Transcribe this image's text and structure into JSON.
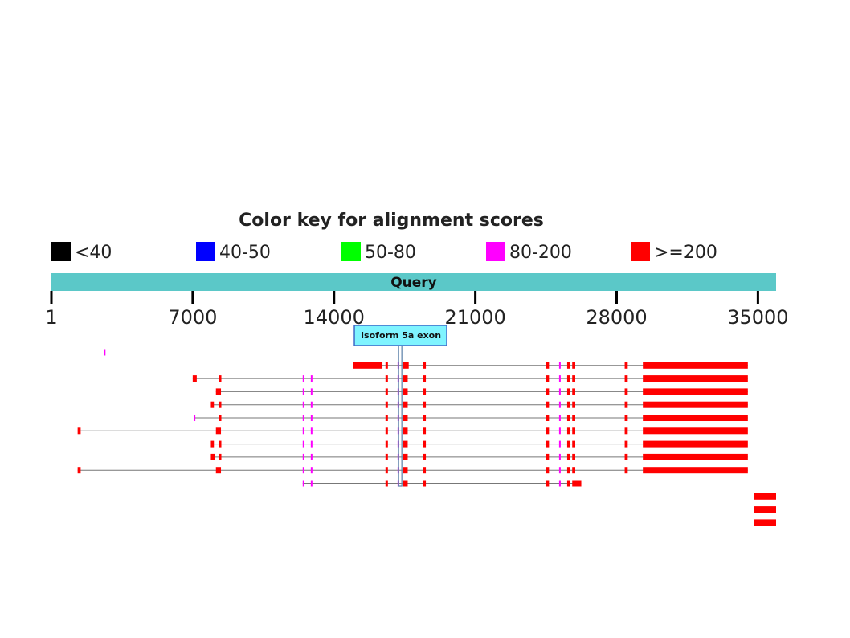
{
  "chart_data": {
    "type": "alignment",
    "title": "Color key for alignment scores",
    "legend": [
      {
        "label": "<40",
        "color": "#000000"
      },
      {
        "label": "40-50",
        "color": "#0000ff"
      },
      {
        "label": "50-80",
        "color": "#00ff00"
      },
      {
        "label": "80-200",
        "color": "#ff00ff"
      },
      {
        "label": ">=200",
        "color": "#ff0000"
      }
    ],
    "query": {
      "label": "Query",
      "start": 1,
      "end": 35900,
      "color": "#5bc8c8"
    },
    "x_ticks": [
      {
        "value": 1,
        "label": "1"
      },
      {
        "value": 7000,
        "label": "7000"
      },
      {
        "value": 14000,
        "label": "14000"
      },
      {
        "value": 21000,
        "label": "21000"
      },
      {
        "value": 28000,
        "label": "28000"
      },
      {
        "value": 35000,
        "label": "35000"
      }
    ],
    "annotation": {
      "label": "Isoform 5a exon",
      "start": 17200,
      "end": 17350
    },
    "hits": [
      {
        "segments": [
          [
            2600,
            2700,
            "m"
          ]
        ]
      },
      {
        "segments": [
          [
            14950,
            15250,
            "r"
          ],
          [
            16550,
            16650,
            "r"
          ],
          [
            17150,
            17250,
            "m"
          ],
          [
            17400,
            17700,
            "r"
          ],
          [
            18400,
            18550,
            "r"
          ],
          [
            24500,
            24650,
            "r"
          ],
          [
            25150,
            25300,
            "m"
          ],
          [
            25550,
            25700,
            "r"
          ],
          [
            25800,
            25950,
            "r"
          ],
          [
            28400,
            28550,
            "r"
          ],
          [
            29300,
            34500,
            "r"
          ]
        ],
        "long_first": 1450
      },
      {
        "segments": [
          [
            7000,
            7200,
            "r"
          ],
          [
            8300,
            8400,
            "r"
          ],
          [
            12450,
            12500,
            "m"
          ],
          [
            12850,
            12950,
            "m"
          ],
          [
            16550,
            16650,
            "r"
          ],
          [
            17150,
            17250,
            "m"
          ],
          [
            17400,
            17650,
            "r"
          ],
          [
            18400,
            18550,
            "r"
          ],
          [
            24500,
            24650,
            "r"
          ],
          [
            25150,
            25300,
            "m"
          ],
          [
            25550,
            25700,
            "r"
          ],
          [
            25800,
            25950,
            "r"
          ],
          [
            28400,
            28550,
            "r"
          ],
          [
            29300,
            34500,
            "r"
          ]
        ]
      },
      {
        "segments": [
          [
            8150,
            8400,
            "r"
          ],
          [
            12450,
            12500,
            "m"
          ],
          [
            12850,
            12950,
            "m"
          ],
          [
            16550,
            16650,
            "r"
          ],
          [
            17150,
            17250,
            "m"
          ],
          [
            17400,
            17650,
            "r"
          ],
          [
            18400,
            18550,
            "r"
          ],
          [
            24500,
            24650,
            "r"
          ],
          [
            25150,
            25300,
            "m"
          ],
          [
            25550,
            25700,
            "r"
          ],
          [
            25800,
            25950,
            "r"
          ],
          [
            28400,
            28550,
            "r"
          ],
          [
            29300,
            34500,
            "r"
          ]
        ]
      },
      {
        "segments": [
          [
            7900,
            8050,
            "r"
          ],
          [
            8300,
            8400,
            "r"
          ],
          [
            12450,
            12500,
            "m"
          ],
          [
            12850,
            12950,
            "m"
          ],
          [
            16550,
            16650,
            "r"
          ],
          [
            17150,
            17250,
            "m"
          ],
          [
            17400,
            17650,
            "r"
          ],
          [
            18400,
            18550,
            "r"
          ],
          [
            24500,
            24650,
            "r"
          ],
          [
            25150,
            25300,
            "m"
          ],
          [
            25550,
            25700,
            "r"
          ],
          [
            25800,
            25950,
            "r"
          ],
          [
            28400,
            28550,
            "r"
          ],
          [
            29300,
            34500,
            "r"
          ]
        ]
      },
      {
        "segments": [
          [
            7050,
            7100,
            "m"
          ],
          [
            8300,
            8400,
            "r"
          ],
          [
            12450,
            12500,
            "m"
          ],
          [
            12850,
            12950,
            "m"
          ],
          [
            16550,
            16650,
            "r"
          ],
          [
            17150,
            17250,
            "m"
          ],
          [
            17400,
            17650,
            "r"
          ],
          [
            18400,
            18550,
            "r"
          ],
          [
            24500,
            24650,
            "r"
          ],
          [
            25150,
            25300,
            "m"
          ],
          [
            25550,
            25700,
            "r"
          ],
          [
            25800,
            25950,
            "r"
          ],
          [
            28400,
            28550,
            "r"
          ],
          [
            29300,
            34500,
            "r"
          ]
        ]
      },
      {
        "segments": [
          [
            1300,
            1450,
            "r"
          ],
          [
            8150,
            8400,
            "r"
          ],
          [
            12450,
            12500,
            "m"
          ],
          [
            12850,
            12950,
            "m"
          ],
          [
            16550,
            16650,
            "r"
          ],
          [
            17150,
            17250,
            "m"
          ],
          [
            17400,
            17650,
            "r"
          ],
          [
            18400,
            18550,
            "r"
          ],
          [
            24500,
            24650,
            "r"
          ],
          [
            25150,
            25300,
            "m"
          ],
          [
            25550,
            25700,
            "r"
          ],
          [
            25800,
            25950,
            "r"
          ],
          [
            28400,
            28550,
            "r"
          ],
          [
            29300,
            34500,
            "r"
          ]
        ]
      },
      {
        "segments": [
          [
            7900,
            8050,
            "r"
          ],
          [
            8300,
            8400,
            "r"
          ],
          [
            12450,
            12500,
            "m"
          ],
          [
            12850,
            12950,
            "m"
          ],
          [
            16550,
            16650,
            "r"
          ],
          [
            17150,
            17250,
            "m"
          ],
          [
            17400,
            17650,
            "r"
          ],
          [
            18400,
            18550,
            "r"
          ],
          [
            24500,
            24650,
            "r"
          ],
          [
            25150,
            25300,
            "m"
          ],
          [
            25550,
            25700,
            "r"
          ],
          [
            25800,
            25950,
            "r"
          ],
          [
            28400,
            28550,
            "r"
          ],
          [
            29300,
            34500,
            "r"
          ]
        ]
      },
      {
        "segments": [
          [
            7900,
            8100,
            "r"
          ],
          [
            8300,
            8400,
            "r"
          ],
          [
            12450,
            12500,
            "m"
          ],
          [
            12850,
            12950,
            "m"
          ],
          [
            16550,
            16650,
            "r"
          ],
          [
            17150,
            17250,
            "m"
          ],
          [
            17400,
            17650,
            "r"
          ],
          [
            18400,
            18550,
            "r"
          ],
          [
            24500,
            24650,
            "r"
          ],
          [
            25150,
            25300,
            "m"
          ],
          [
            25550,
            25700,
            "r"
          ],
          [
            25800,
            25950,
            "r"
          ],
          [
            28400,
            28550,
            "r"
          ],
          [
            29300,
            34500,
            "r"
          ]
        ]
      },
      {
        "segments": [
          [
            1300,
            1450,
            "r"
          ],
          [
            8150,
            8400,
            "r"
          ],
          [
            12450,
            12500,
            "m"
          ],
          [
            12850,
            12950,
            "m"
          ],
          [
            16550,
            16650,
            "r"
          ],
          [
            17150,
            17250,
            "m"
          ],
          [
            17400,
            17650,
            "r"
          ],
          [
            18400,
            18550,
            "r"
          ],
          [
            24500,
            24650,
            "r"
          ],
          [
            25150,
            25300,
            "m"
          ],
          [
            25550,
            25700,
            "r"
          ],
          [
            25800,
            25950,
            "r"
          ],
          [
            28400,
            28550,
            "r"
          ],
          [
            29300,
            34500,
            "r"
          ]
        ]
      },
      {
        "segments": [
          [
            12450,
            12500,
            "m"
          ],
          [
            12850,
            12950,
            "m"
          ],
          [
            16550,
            16650,
            "r"
          ],
          [
            17150,
            17250,
            "m"
          ],
          [
            17400,
            17650,
            "r"
          ],
          [
            18400,
            18550,
            "r"
          ],
          [
            24500,
            24650,
            "r"
          ],
          [
            25150,
            25300,
            "m"
          ],
          [
            25550,
            25700,
            "r"
          ],
          [
            25800,
            26250,
            "r"
          ]
        ]
      },
      {
        "segments": [
          [
            34800,
            35900,
            "r"
          ]
        ]
      },
      {
        "segments": [
          [
            34800,
            35900,
            "r"
          ]
        ]
      },
      {
        "segments": [
          [
            34800,
            35900,
            "r"
          ]
        ]
      }
    ]
  }
}
